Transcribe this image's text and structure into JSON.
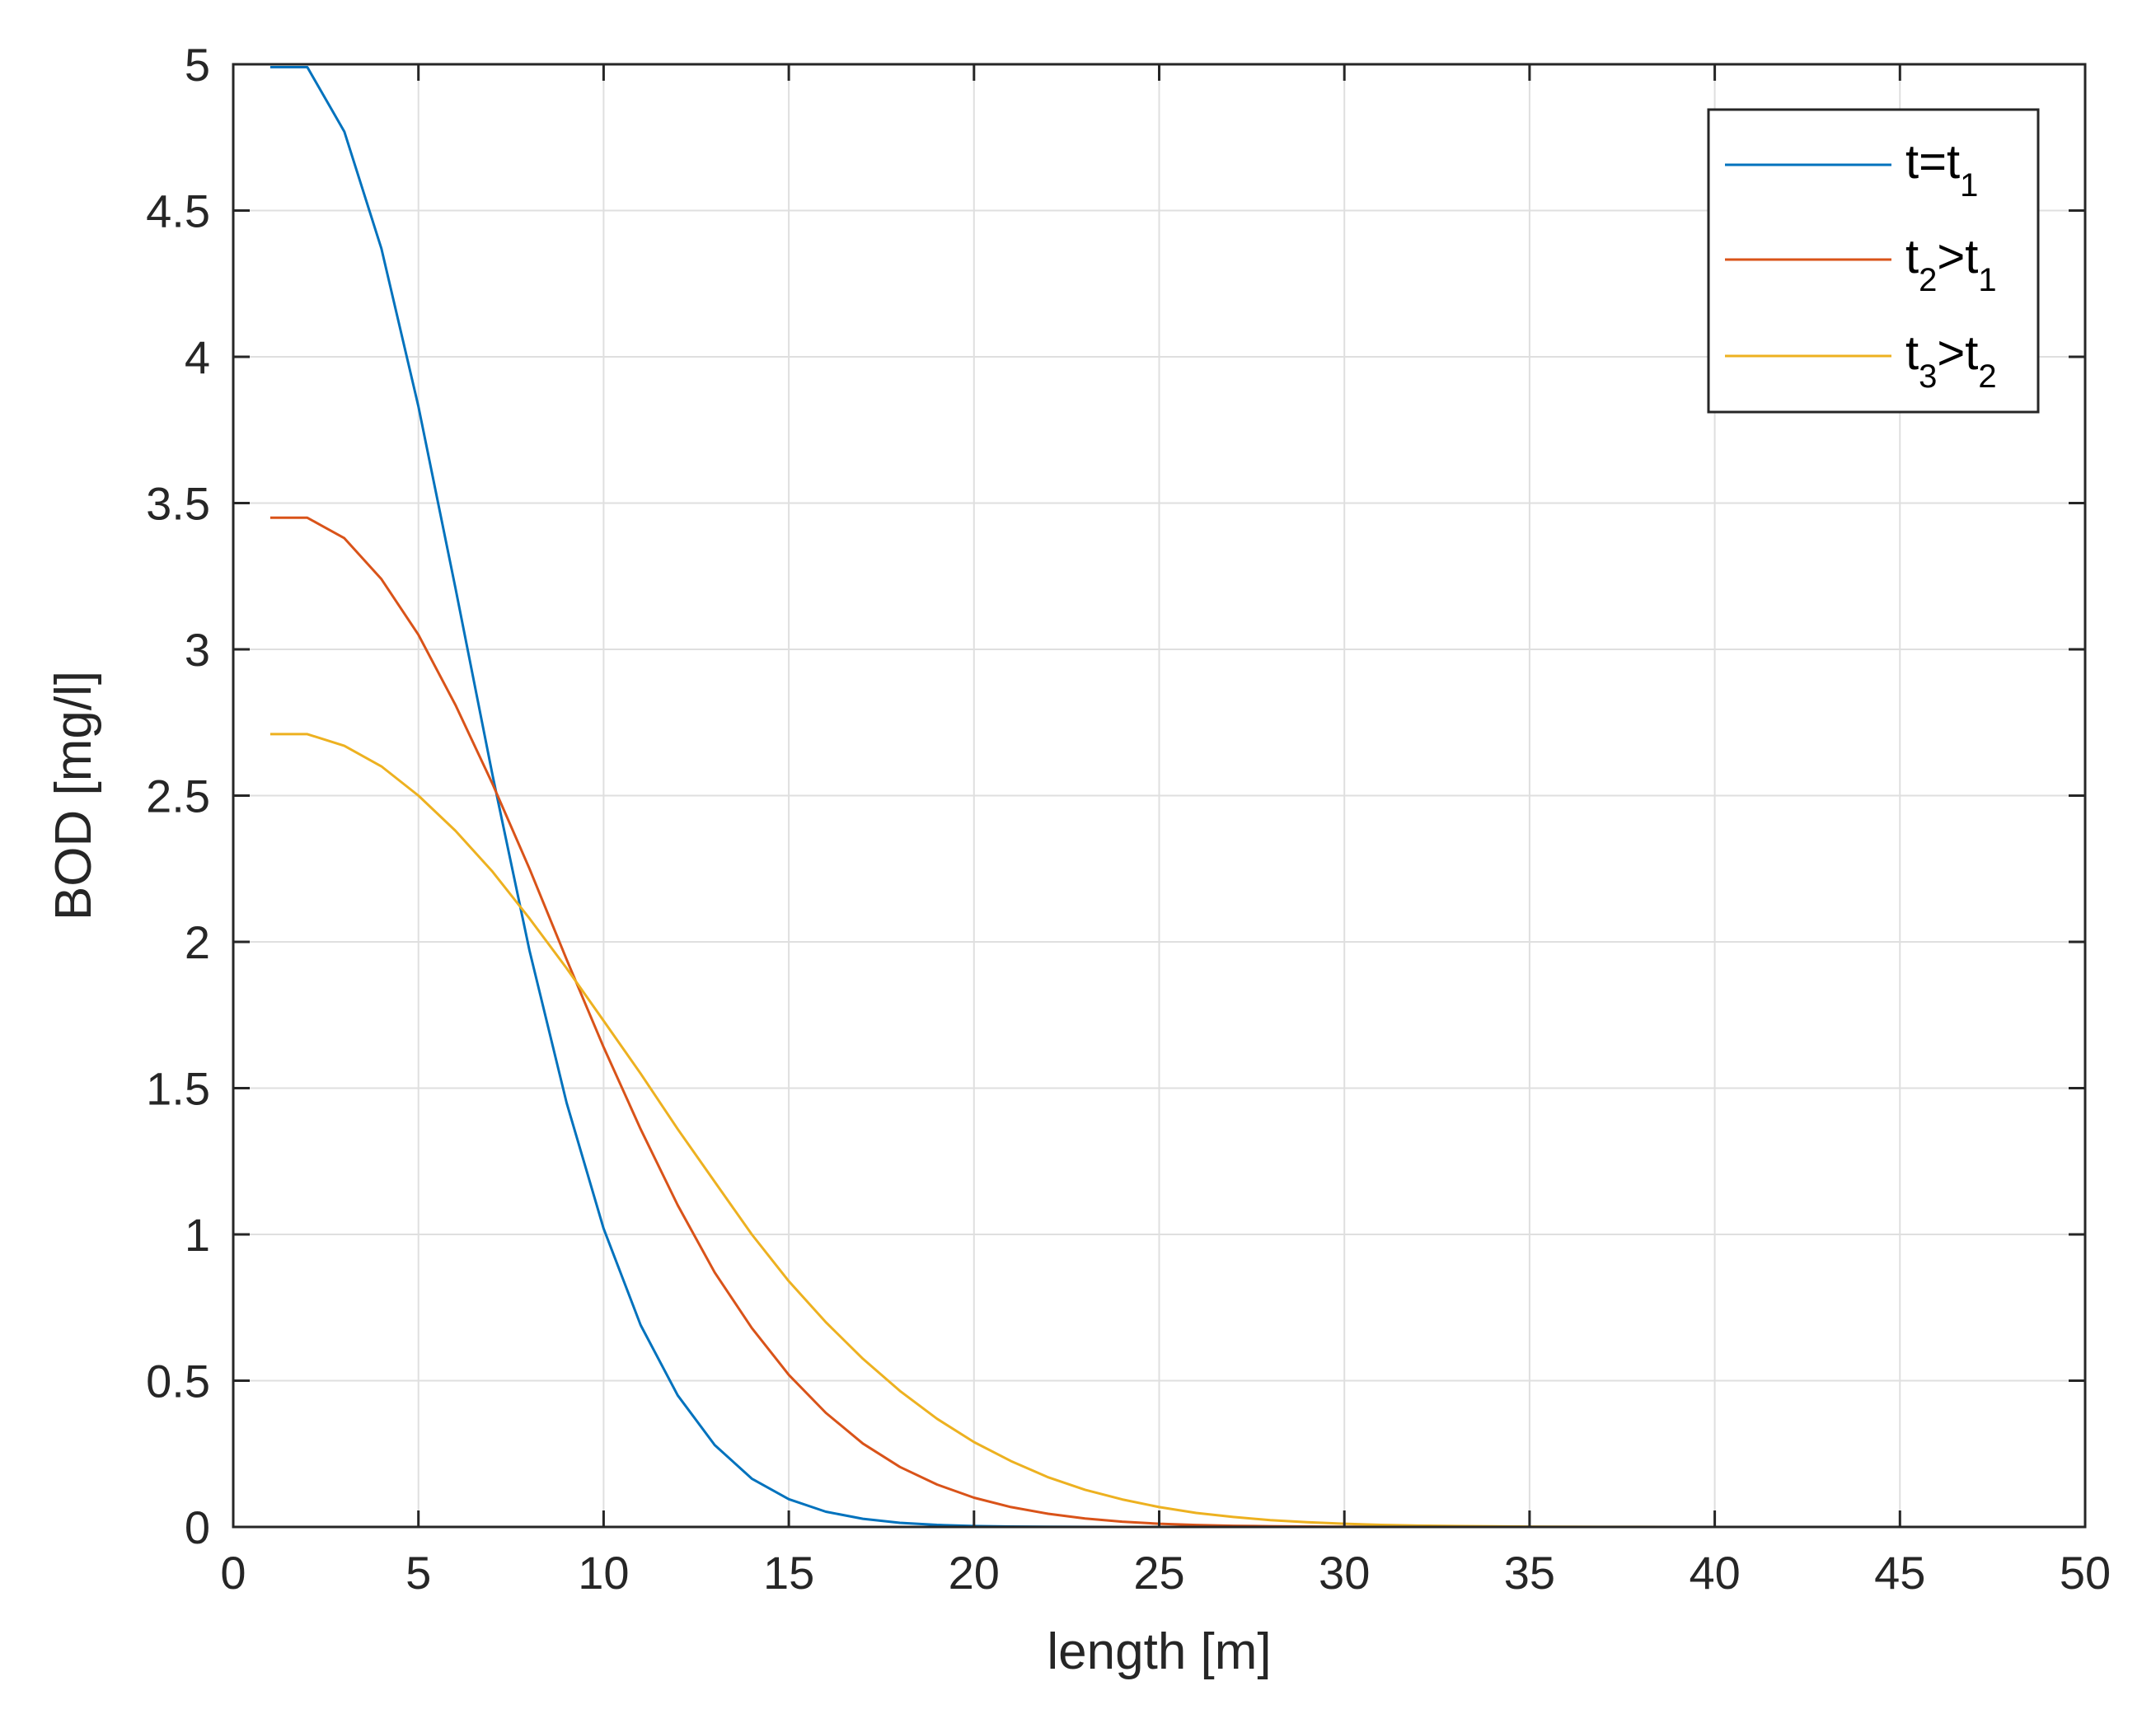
{
  "chart_data": {
    "type": "line",
    "title": "",
    "xlabel": "length [m]",
    "ylabel": "BOD [mg/l]",
    "xlim": [
      0,
      50
    ],
    "ylim": [
      0,
      5
    ],
    "xticks": [
      0,
      5,
      10,
      15,
      20,
      25,
      30,
      35,
      40,
      45,
      50
    ],
    "xtick_labels": [
      "0",
      "5",
      "10",
      "15",
      "20",
      "25",
      "30",
      "35",
      "40",
      "45",
      "50"
    ],
    "yticks": [
      0,
      0.5,
      1,
      1.5,
      2,
      2.5,
      3,
      3.5,
      4,
      4.5,
      5
    ],
    "ytick_labels": [
      "0",
      "0.5",
      "1",
      "1.5",
      "2",
      "2.5",
      "3",
      "3.5",
      "4",
      "4.5",
      "5"
    ],
    "grid": true,
    "legend_position": "top-right",
    "x": [
      1,
      2,
      3,
      4,
      5,
      6,
      7,
      8,
      9,
      10,
      11,
      12,
      13,
      14,
      15,
      16,
      17,
      18,
      19,
      20,
      21,
      22,
      23,
      24,
      25,
      26,
      27,
      28,
      29,
      30,
      31,
      32,
      33,
      34,
      35,
      36,
      37,
      38,
      39,
      40,
      41,
      42,
      43,
      44,
      45,
      46,
      47,
      48,
      49,
      50
    ],
    "series": [
      {
        "name": "t=t1",
        "label_main": "t=t",
        "label_sub": "1",
        "label_rest": "",
        "label_sub2": "",
        "color": "#0072BD",
        "values": [
          4.99,
          4.99,
          4.77,
          4.37,
          3.83,
          3.21,
          2.57,
          1.97,
          1.45,
          1.02,
          0.69,
          0.45,
          0.28,
          0.165,
          0.095,
          0.052,
          0.028,
          0.014,
          0.007,
          0.003,
          0.0015,
          0.0007,
          0.0003,
          0.0001,
          0,
          0,
          0,
          0,
          0,
          0,
          0,
          0,
          0,
          0,
          0,
          0,
          0,
          0,
          0,
          0,
          0,
          0,
          0,
          0,
          0,
          0,
          0,
          0,
          0,
          0
        ]
      },
      {
        "name": "t2>t1",
        "label_main": "t",
        "label_sub": "2",
        "label_rest": ">t",
        "label_sub2": "1",
        "color": "#D95319",
        "values": [
          3.45,
          3.45,
          3.38,
          3.24,
          3.05,
          2.81,
          2.54,
          2.25,
          1.94,
          1.64,
          1.36,
          1.1,
          0.87,
          0.68,
          0.52,
          0.39,
          0.285,
          0.205,
          0.145,
          0.1,
          0.068,
          0.045,
          0.029,
          0.018,
          0.011,
          0.0068,
          0.004,
          0.0024,
          0.0014,
          0.0008,
          0.0004,
          0.0002,
          0,
          0,
          0,
          0,
          0,
          0,
          0,
          0,
          0,
          0,
          0,
          0,
          0,
          0,
          0,
          0,
          0,
          0
        ]
      },
      {
        "name": "t3>t2",
        "label_main": "t",
        "label_sub": "3",
        "label_rest": ">t",
        "label_sub2": "2",
        "color": "#EDB120",
        "values": [
          2.71,
          2.71,
          2.67,
          2.6,
          2.5,
          2.38,
          2.24,
          2.08,
          1.91,
          1.73,
          1.55,
          1.36,
          1.18,
          1.0,
          0.84,
          0.7,
          0.575,
          0.465,
          0.37,
          0.29,
          0.225,
          0.17,
          0.127,
          0.094,
          0.068,
          0.048,
          0.034,
          0.023,
          0.016,
          0.011,
          0.007,
          0.0046,
          0.003,
          0.0019,
          0.0012,
          0.0007,
          0.0004,
          0.0002,
          0.0001,
          0,
          0,
          0,
          0,
          0,
          0,
          0,
          0,
          0,
          0,
          0
        ]
      }
    ]
  }
}
